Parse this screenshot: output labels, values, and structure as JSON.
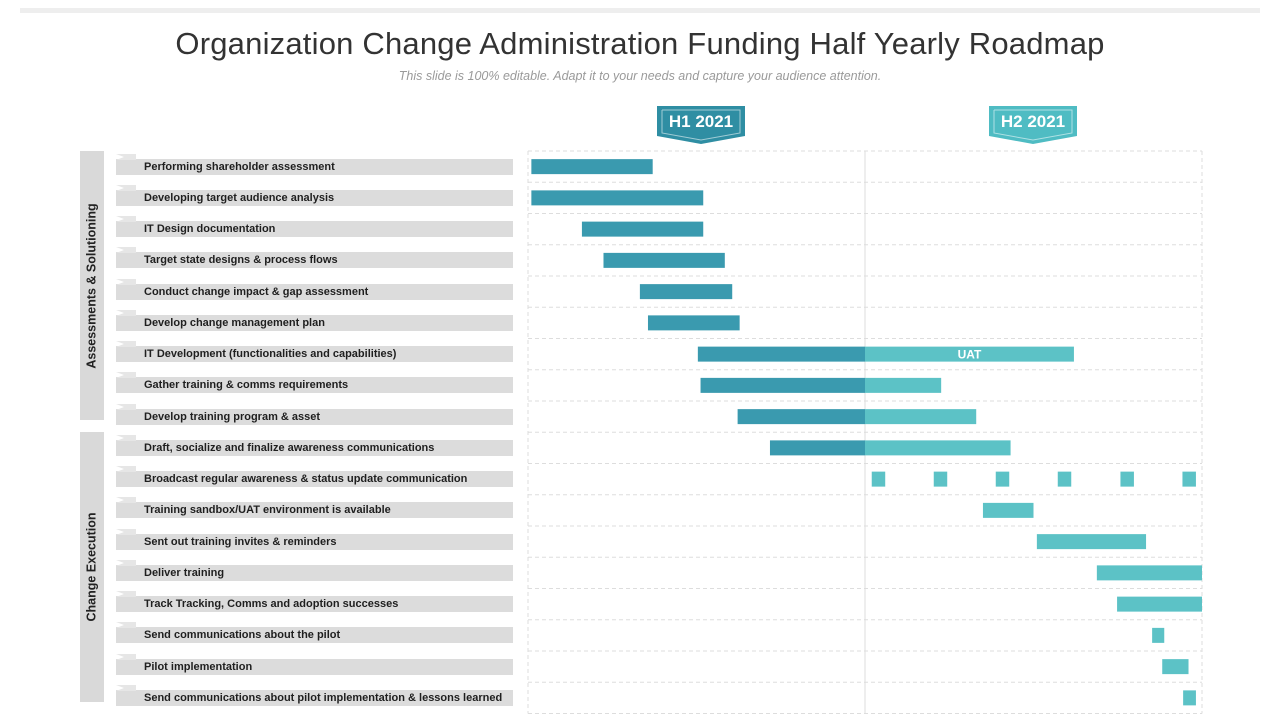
{
  "chart_data": {
    "type": "gantt",
    "title": "Organization Change Administration Funding Half Yearly Roadmap",
    "subtitle": "This slide is 100% editable. Adapt it to your needs and capture your audience attention.",
    "periods": [
      "H1 2021",
      "H2 2021"
    ],
    "axis": {
      "unit": "fraction of year",
      "range": [
        0,
        1
      ]
    },
    "groups": [
      {
        "name": "Assessments  & Solutioning",
        "task_count": 9
      },
      {
        "name": "Change Execution",
        "task_count": 9
      }
    ],
    "tasks": [
      {
        "name": "Performing shareholder assessment",
        "start": 0.005,
        "end": 0.185
      },
      {
        "name": "Developing target audience analysis",
        "start": 0.005,
        "end": 0.26
      },
      {
        "name": "IT Design documentation",
        "start": 0.08,
        "end": 0.26
      },
      {
        "name": "Target state designs & process flows",
        "start": 0.112,
        "end": 0.292
      },
      {
        "name": "Conduct change impact & gap assessment",
        "start": 0.166,
        "end": 0.303
      },
      {
        "name": "Develop change management plan",
        "start": 0.178,
        "end": 0.314
      },
      {
        "name": "IT Development (functionalities and capabilities)",
        "start": 0.252,
        "end": 0.81,
        "label": "UAT"
      },
      {
        "name": "Gather training & comms requirements",
        "start": 0.256,
        "end": 0.613
      },
      {
        "name": "Develop training program & asset",
        "start": 0.311,
        "end": 0.665
      },
      {
        "name": "Draft, socialize and finalize awareness communications",
        "start": 0.359,
        "end": 0.716
      },
      {
        "name": "Broadcast regular awareness & status update communication",
        "segments": [
          [
            0.51,
            0.53
          ],
          [
            0.602,
            0.622
          ],
          [
            0.694,
            0.714
          ],
          [
            0.786,
            0.806
          ],
          [
            0.879,
            0.899
          ],
          [
            0.971,
            0.991
          ]
        ]
      },
      {
        "name": "Training sandbox/UAT environment is available",
        "start": 0.675,
        "end": 0.75
      },
      {
        "name": "Sent out training invites & reminders",
        "start": 0.755,
        "end": 0.917
      },
      {
        "name": "Deliver training",
        "start": 0.844,
        "end": 1.0
      },
      {
        "name": "Track Tracking, Comms and adoption successes",
        "start": 0.874,
        "end": 1.0
      },
      {
        "name": "Send communications about the pilot",
        "start": 0.926,
        "end": 0.944
      },
      {
        "name": "Pilot implementation",
        "start": 0.941,
        "end": 0.98
      },
      {
        "name": "Send communications about pilot implementation & lessons learned",
        "start": 0.972,
        "end": 0.991
      }
    ]
  },
  "colors": {
    "h1_bar": "#3a9aaf",
    "h2_bar": "#5cc2c6",
    "h1_badge": "#2f8ea3",
    "h2_badge": "#4fbcc3",
    "row_bg": "#dcdcdc",
    "grid": "#dddddd"
  }
}
